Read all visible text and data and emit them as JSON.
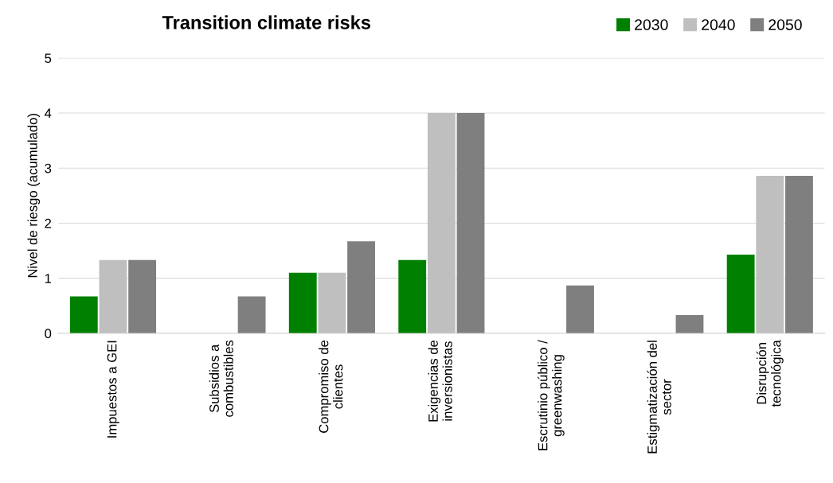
{
  "chart_data": {
    "type": "bar",
    "title": "Transition climate risks",
    "ylabel": "Nivel de riesgo (acumulado)",
    "categories": [
      "Impuestos a GEI",
      "Subsidios a\ncombustibles",
      "Compromiso de\nclientes",
      "Exigencias de\ninversionistas",
      "Escrutinio público /\ngreenwashing",
      "Estigmatización del\nsector",
      "Disrupción\ntecnológica"
    ],
    "series": [
      {
        "name": "2030",
        "color": "#008000",
        "values": [
          0.67,
          0,
          1.1,
          1.33,
          0,
          0,
          1.43
        ]
      },
      {
        "name": "2040",
        "color": "#bfbfbf",
        "values": [
          1.33,
          0,
          1.1,
          4.0,
          0,
          0,
          2.86
        ]
      },
      {
        "name": "2050",
        "color": "#7f7f7f",
        "values": [
          1.33,
          0.67,
          1.67,
          4.0,
          0.87,
          0.33,
          2.86
        ]
      }
    ],
    "ylim": [
      0,
      5
    ],
    "yticks": [
      0,
      1,
      2,
      3,
      4,
      5
    ],
    "grid": "y",
    "legend": "top right"
  }
}
